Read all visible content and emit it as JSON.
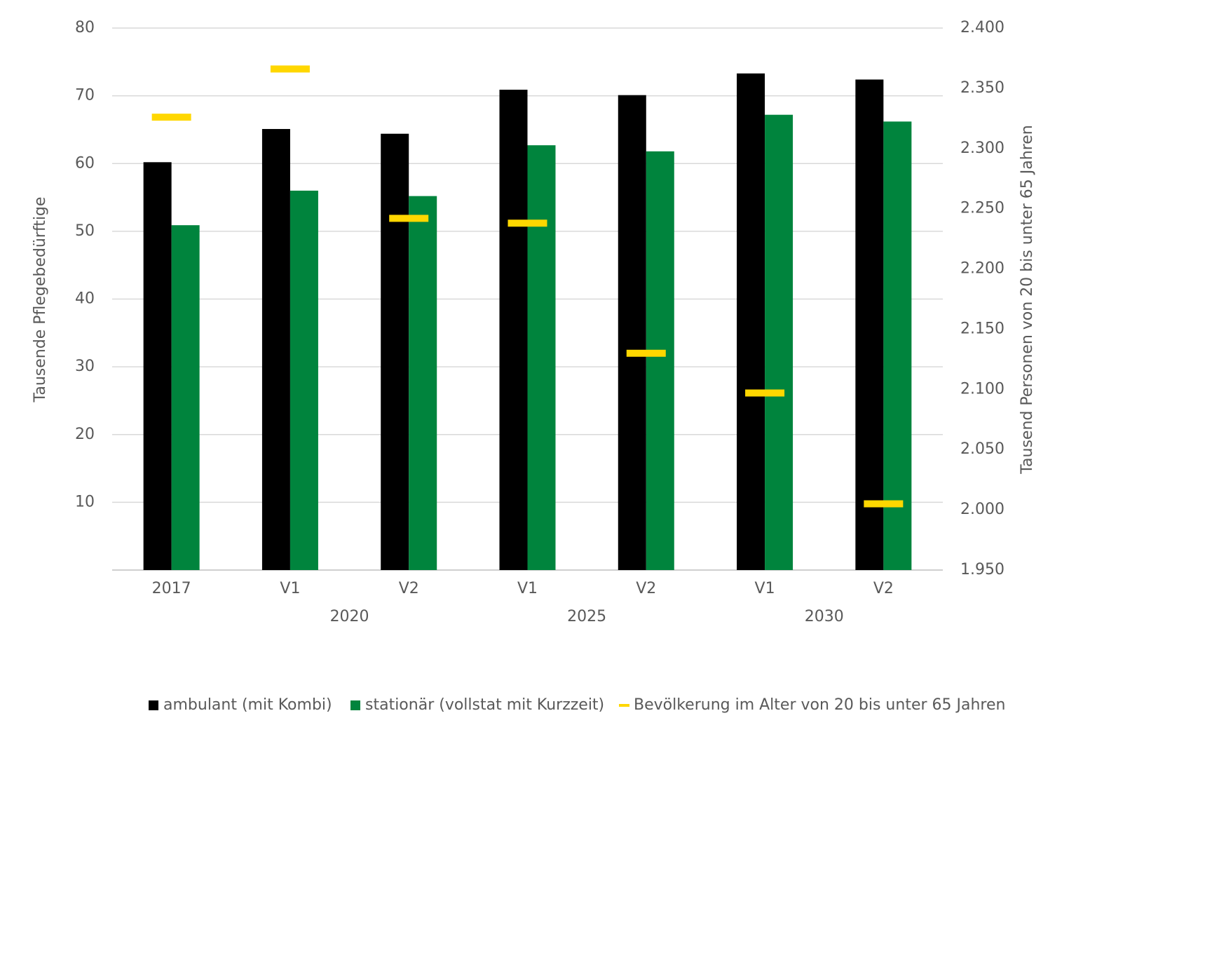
{
  "chart_data": {
    "type": "bar",
    "ylabel": "Tausende Pflegebedürftige",
    "y2label": "Tausend Personen von 20 bis unter 65 Jahren",
    "categories": [
      "2017",
      "V1",
      "V2",
      "V1",
      "V2",
      "V1",
      "V2"
    ],
    "category_groups": [
      null,
      "2020",
      "2020",
      "2025",
      "2025",
      "2030",
      "2030"
    ],
    "ylim": [
      0,
      80
    ],
    "yticks": [
      10,
      20,
      30,
      40,
      50,
      60,
      70,
      80
    ],
    "y2lim": [
      1950,
      2400
    ],
    "y2ticks": [
      {
        "value": 1950,
        "label": "1.950"
      },
      {
        "value": 2000,
        "label": "2.000"
      },
      {
        "value": 2050,
        "label": "2.050"
      },
      {
        "value": 2100,
        "label": "2.100"
      },
      {
        "value": 2150,
        "label": "2.150"
      },
      {
        "value": 2200,
        "label": "2.200"
      },
      {
        "value": 2250,
        "label": "2.250"
      },
      {
        "value": 2300,
        "label": "2.300"
      },
      {
        "value": 2350,
        "label": "2.350"
      },
      {
        "value": 2400,
        "label": "2.400"
      }
    ],
    "grid": true,
    "legend": "bottom",
    "series": [
      {
        "name": "ambulant (mit Kombi)",
        "type": "bar",
        "color": "#000000",
        "values": [
          60.2,
          65.1,
          64.4,
          70.9,
          70.1,
          73.3,
          72.4
        ]
      },
      {
        "name": "stationär (vollstat mit Kurzzeit)",
        "type": "bar",
        "color": "#00843d",
        "values": [
          50.9,
          56.0,
          55.2,
          62.7,
          61.8,
          67.2,
          66.2
        ]
      },
      {
        "name": "Bevölkerung im Alter von 20 bis unter 65 Jahren",
        "type": "marker",
        "axis": "y2",
        "color": "#ffd700",
        "values": [
          2326,
          2366,
          2242,
          2238,
          2130,
          2097,
          2005
        ]
      }
    ]
  }
}
